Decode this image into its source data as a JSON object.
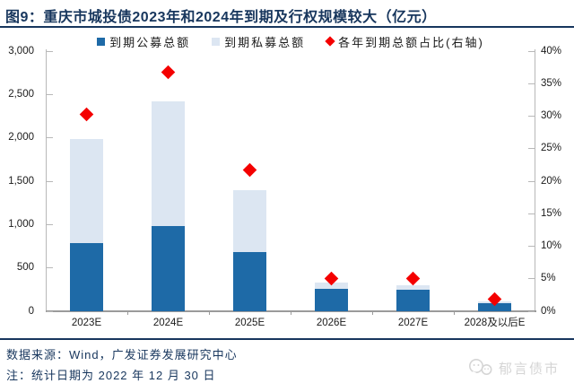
{
  "figure": {
    "title": "图9：重庆市城投债2023年和2024年到期及行权规模较大（亿元）",
    "source_note": "数据来源：Wind，广发证券发展研究中心",
    "date_note": "注：统计日期为 2022 年 12 月 30 日",
    "watermark_text": "郁言债市"
  },
  "colors": {
    "navy": "#17365d",
    "axis_line": "#b8b8b8",
    "x_axis_line": "#9b9b9b",
    "tick_text": "#1a1a1a",
    "watermark_gray": "#d5d5d5"
  },
  "chart_data": {
    "type": "bar",
    "subtype": "stacked-columns-with-right-axis-diamond-markers",
    "title": "重庆市城投债2023年和2024年到期及行权规模较大（亿元）",
    "categories": [
      "2023E",
      "2024E",
      "2025E",
      "2026E",
      "2027E",
      "2028及以后E"
    ],
    "series": [
      {
        "name": "到期公募总额",
        "type": "bar",
        "stack": "total",
        "axis": "left",
        "color": "#1e6aa7",
        "values": [
          785,
          985,
          685,
          260,
          250,
          95
        ]
      },
      {
        "name": "到期私募总额",
        "type": "bar",
        "stack": "total",
        "axis": "left",
        "color": "#dce6f2",
        "values": [
          1200,
          1435,
          715,
          70,
          50,
          15
        ]
      },
      {
        "name": "各年到期总额占比(右轴)",
        "type": "scatter",
        "marker": "diamond",
        "axis": "right",
        "color": "#f40000",
        "values": [
          30.3,
          36.7,
          21.7,
          5.1,
          5.0,
          1.9
        ],
        "unit": "%"
      }
    ],
    "stack_totals": [
      1985,
      2420,
      1400,
      330,
      300,
      110
    ],
    "left_axis": {
      "min": 0,
      "max": 3000,
      "step": 500,
      "tick_labels": [
        "0",
        "500",
        "1,000",
        "1,500",
        "2,000",
        "2,500",
        "3,000"
      ]
    },
    "right_axis": {
      "min": 0,
      "max": 40,
      "step": 5,
      "tick_labels": [
        "0%",
        "5%",
        "10%",
        "15%",
        "20%",
        "25%",
        "30%",
        "35%",
        "40%"
      ]
    },
    "legend_position": "top",
    "gridlines": false
  }
}
